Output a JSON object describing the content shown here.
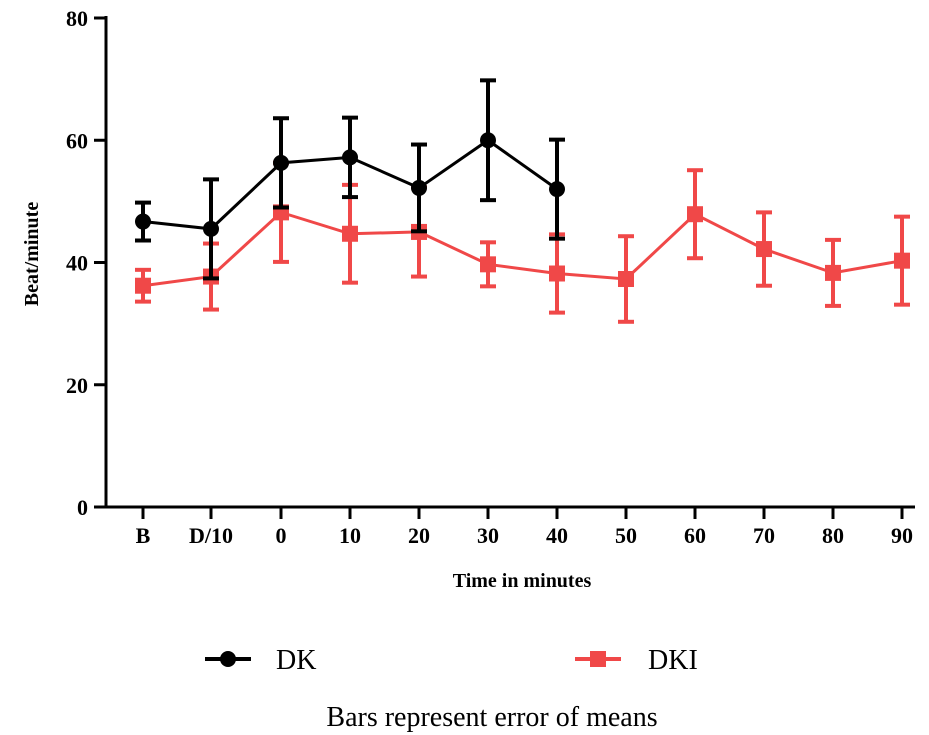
{
  "chart_data": {
    "type": "line",
    "title": "",
    "xlabel": "Time in minutes",
    "ylabel": "Beat/minute",
    "ylim": [
      0,
      80
    ],
    "yticks": [
      "0",
      "20",
      "40",
      "60",
      "80"
    ],
    "categories": [
      "B",
      "D/10",
      "0",
      "10",
      "20",
      "30",
      "40",
      "50",
      "60",
      "70",
      "80",
      "90"
    ],
    "grid": false,
    "legend_position": "bottom",
    "series": [
      {
        "name": "DK",
        "color": "#000000",
        "marker": "circle",
        "values": [
          46.7,
          45.5,
          56.3,
          57.2,
          52.2,
          60.0,
          52.0,
          null,
          null,
          null,
          null,
          null
        ],
        "error": [
          3.1,
          8.1,
          7.3,
          6.5,
          7.1,
          9.8,
          8.1,
          null,
          null,
          null,
          null,
          null
        ]
      },
      {
        "name": "DKI",
        "color": "#f04848",
        "marker": "square",
        "values": [
          36.2,
          37.7,
          48.2,
          44.7,
          45.0,
          39.7,
          38.2,
          37.3,
          47.9,
          42.2,
          38.3,
          40.3
        ],
        "error": [
          2.6,
          5.4,
          8.1,
          8.0,
          7.3,
          3.6,
          6.4,
          7.0,
          7.2,
          6.0,
          5.4,
          7.2
        ]
      }
    ],
    "note": "Bars represent error of means"
  }
}
